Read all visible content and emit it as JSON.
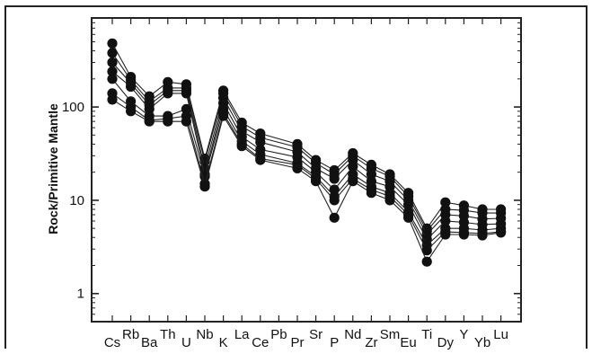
{
  "chart_data": {
    "type": "line",
    "title": "",
    "xlabel": "",
    "ylabel": "Rock/Primitive Mantle",
    "y_scale": "log",
    "ylim": [
      0.5,
      900
    ],
    "y_ticks": [
      1,
      10,
      100
    ],
    "y_tick_labels": [
      "1",
      "10",
      "100"
    ],
    "grid": false,
    "legend": "none",
    "marker": "filled-circle",
    "colors": {
      "line": "#222222",
      "marker": "#111111",
      "axis": "#222222"
    },
    "categories": [
      "Cs",
      "Rb",
      "Ba",
      "Th",
      "U",
      "Nb",
      "K",
      "La",
      "Ce",
      "Pb",
      "Pr",
      "Sr",
      "P",
      "Nd",
      "Zr",
      "Sm",
      "Eu",
      "Ti",
      "Dy",
      "Y",
      "Yb",
      "Lu"
    ],
    "category_rows": [
      "low",
      "high",
      "low",
      "high",
      "low",
      "high",
      "low",
      "high",
      "low",
      "high",
      "low",
      "high",
      "low",
      "high",
      "low",
      "high",
      "low",
      "high",
      "low",
      "high",
      "low",
      "high"
    ],
    "series": [
      {
        "values": [
          480,
          210,
          130,
          185,
          175,
          28,
          150,
          68,
          52,
          null,
          40,
          27,
          21,
          32,
          24,
          19,
          12,
          5,
          9.5,
          8.8,
          8.0,
          8.0
        ]
      },
      {
        "values": [
          380,
          195,
          115,
          160,
          160,
          26,
          140,
          62,
          47,
          null,
          37,
          25,
          19,
          30,
          22,
          18,
          11,
          4.7,
          8.0,
          7.8,
          7.3,
          7.3
        ]
      },
      {
        "values": [
          300,
          180,
          105,
          150,
          150,
          22,
          125,
          55,
          42,
          null,
          33,
          22,
          17,
          27,
          19,
          16,
          10,
          4.3,
          7.0,
          6.8,
          6.3,
          6.4
        ]
      },
      {
        "values": [
          240,
          165,
          95,
          140,
          140,
          19,
          110,
          48,
          35,
          null,
          29,
          20,
          13,
          23,
          16,
          14,
          9,
          3.8,
          6.0,
          5.8,
          5.5,
          5.6
        ]
      },
      {
        "values": [
          200,
          115,
          80,
          80,
          95,
          18,
          95,
          43,
          31,
          null,
          25,
          18,
          11,
          19,
          14,
          12,
          7.5,
          3.3,
          5.0,
          5.0,
          4.8,
          5.0
        ]
      },
      {
        "values": [
          140,
          100,
          72,
          75,
          80,
          15,
          85,
          40,
          28,
          null,
          24,
          17,
          10,
          17,
          13,
          11,
          7.0,
          2.9,
          4.6,
          4.5,
          4.4,
          4.6
        ]
      },
      {
        "values": [
          120,
          90,
          70,
          70,
          70,
          14,
          80,
          38,
          27,
          null,
          22,
          16,
          6.5,
          16,
          12,
          10,
          6.5,
          2.2,
          4.3,
          4.3,
          4.2,
          4.5
        ]
      }
    ]
  }
}
